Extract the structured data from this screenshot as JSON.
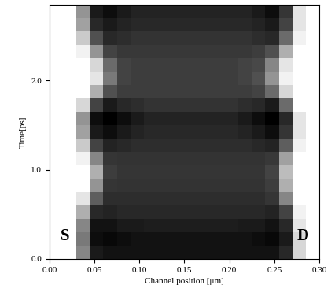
{
  "chart_data": {
    "type": "heatmap",
    "x_label": "Channel position [μm]",
    "y_label": "Time[ps]",
    "annotations": [
      "S",
      "D"
    ],
    "xlim": [
      0,
      0.3
    ],
    "ylim": [
      0,
      2.85
    ],
    "xticks": [
      {
        "value": 0,
        "label": "0.00"
      },
      0.05,
      {
        "value": 0.1,
        "label": "0.10"
      },
      0.15,
      {
        "value": 0.2,
        "label": "0.20"
      },
      0.25,
      {
        "value": 0.3,
        "label": "0.30"
      }
    ],
    "yticks": [
      {
        "value": 0,
        "label": "0.0"
      },
      {
        "value": 1,
        "label": "1.0"
      },
      {
        "value": 2,
        "label": "2.0"
      }
    ],
    "tick_labels": true,
    "grid": false,
    "x_edges": [
      0,
      0.015,
      0.03,
      0.045,
      0.06,
      0.075,
      0.09,
      0.105,
      0.12,
      0.135,
      0.15,
      0.165,
      0.18,
      0.195,
      0.21,
      0.225,
      0.24,
      0.255,
      0.27,
      0.285,
      0.3
    ],
    "y_edges": [
      0,
      0.15,
      0.3,
      0.45,
      0.6,
      0.75,
      0.9,
      1.05,
      1.2,
      1.35,
      1.5,
      1.65,
      1.8,
      1.95,
      2.1,
      2.25,
      2.4,
      2.55,
      2.7,
      2.85
    ],
    "cells": [
      [
        0,
        0,
        45,
        85,
        88,
        88,
        88,
        88,
        88,
        88,
        88,
        88,
        88,
        88,
        88,
        88,
        88,
        80,
        15,
        0
      ],
      [
        0,
        0,
        50,
        90,
        92,
        90,
        88,
        88,
        88,
        88,
        88,
        88,
        88,
        88,
        88,
        90,
        92,
        85,
        15,
        0
      ],
      [
        0,
        0,
        45,
        88,
        88,
        85,
        85,
        84,
        84,
        84,
        84,
        84,
        84,
        84,
        85,
        85,
        88,
        80,
        10,
        0
      ],
      [
        0,
        0,
        30,
        80,
        82,
        80,
        80,
        80,
        80,
        80,
        80,
        80,
        80,
        80,
        80,
        80,
        82,
        70,
        5,
        0
      ],
      [
        0,
        0,
        10,
        60,
        78,
        78,
        78,
        78,
        78,
        78,
        78,
        78,
        78,
        78,
        78,
        78,
        75,
        45,
        0,
        0
      ],
      [
        0,
        0,
        0,
        40,
        75,
        76,
        76,
        76,
        76,
        76,
        76,
        76,
        76,
        76,
        76,
        76,
        72,
        30,
        0,
        0
      ],
      [
        0,
        0,
        0,
        30,
        72,
        75,
        75,
        75,
        75,
        75,
        75,
        75,
        75,
        75,
        75,
        75,
        70,
        25,
        0,
        0
      ],
      [
        0,
        0,
        5,
        45,
        75,
        76,
        76,
        76,
        76,
        76,
        76,
        76,
        76,
        76,
        76,
        76,
        74,
        35,
        0,
        0
      ],
      [
        0,
        0,
        20,
        70,
        82,
        80,
        78,
        78,
        78,
        78,
        78,
        78,
        78,
        78,
        78,
        80,
        82,
        60,
        5,
        0
      ],
      [
        0,
        0,
        35,
        85,
        90,
        85,
        82,
        80,
        80,
        80,
        80,
        80,
        80,
        80,
        82,
        85,
        90,
        75,
        10,
        0
      ],
      [
        0,
        0,
        40,
        90,
        95,
        90,
        85,
        82,
        82,
        82,
        82,
        82,
        82,
        82,
        85,
        90,
        95,
        80,
        10,
        0
      ],
      [
        0,
        0,
        15,
        70,
        85,
        80,
        78,
        76,
        76,
        76,
        76,
        76,
        76,
        76,
        78,
        80,
        85,
        55,
        0,
        0
      ],
      [
        0,
        0,
        0,
        30,
        65,
        72,
        72,
        72,
        72,
        72,
        72,
        72,
        72,
        72,
        72,
        70,
        55,
        15,
        0,
        0
      ],
      [
        0,
        0,
        0,
        10,
        50,
        70,
        72,
        72,
        72,
        72,
        72,
        72,
        72,
        72,
        70,
        65,
        40,
        5,
        0,
        0
      ],
      [
        0,
        0,
        0,
        15,
        55,
        70,
        72,
        72,
        72,
        72,
        72,
        72,
        72,
        72,
        70,
        68,
        45,
        10,
        0,
        0
      ],
      [
        0,
        0,
        5,
        40,
        70,
        74,
        74,
        74,
        74,
        74,
        74,
        74,
        74,
        74,
        74,
        72,
        65,
        30,
        0,
        0
      ],
      [
        0,
        0,
        20,
        65,
        80,
        78,
        76,
        76,
        76,
        76,
        76,
        76,
        76,
        76,
        76,
        78,
        80,
        55,
        5,
        0
      ],
      [
        0,
        0,
        35,
        80,
        85,
        82,
        80,
        80,
        80,
        80,
        80,
        80,
        80,
        80,
        80,
        82,
        85,
        70,
        10,
        0
      ],
      [
        0,
        0,
        40,
        85,
        90,
        85,
        82,
        82,
        82,
        82,
        82,
        82,
        82,
        82,
        82,
        85,
        90,
        75,
        10,
        0
      ]
    ]
  }
}
